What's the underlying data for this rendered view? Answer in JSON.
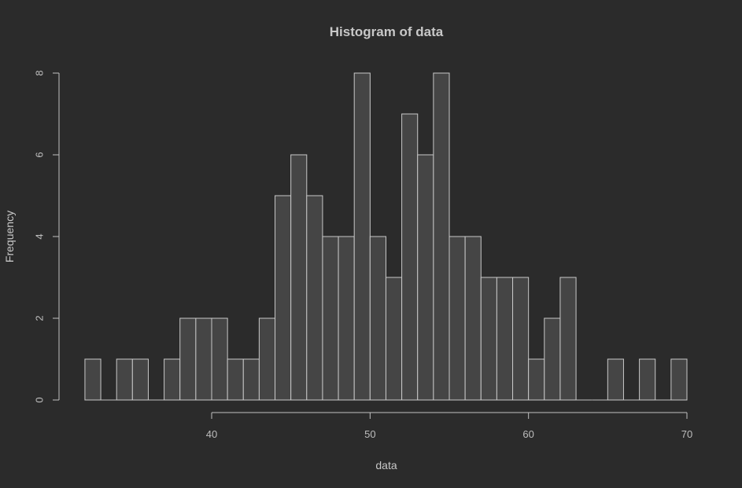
{
  "chart_data": {
    "type": "bar",
    "title": "Histogram of data",
    "xlabel": "data",
    "ylabel": "Frequency",
    "bin_width": 1,
    "bin_start": 32,
    "counts": [
      1,
      0,
      1,
      1,
      0,
      1,
      2,
      2,
      2,
      1,
      1,
      2,
      5,
      6,
      5,
      4,
      4,
      8,
      4,
      3,
      7,
      6,
      8,
      4,
      4,
      3,
      3,
      3,
      1,
      2,
      3,
      0,
      0,
      1,
      0,
      1,
      0,
      1
    ],
    "xticks": [
      40,
      50,
      60,
      70
    ],
    "yticks": [
      0,
      2,
      4,
      6,
      8
    ],
    "xlim": [
      40,
      70
    ],
    "ylim": [
      0,
      8
    ],
    "grid": false,
    "colors": {
      "background": "#2b2b2b",
      "bar_fill": "#454545",
      "bar_stroke": "#c8c8c8",
      "text": "#c8c8c8"
    }
  }
}
